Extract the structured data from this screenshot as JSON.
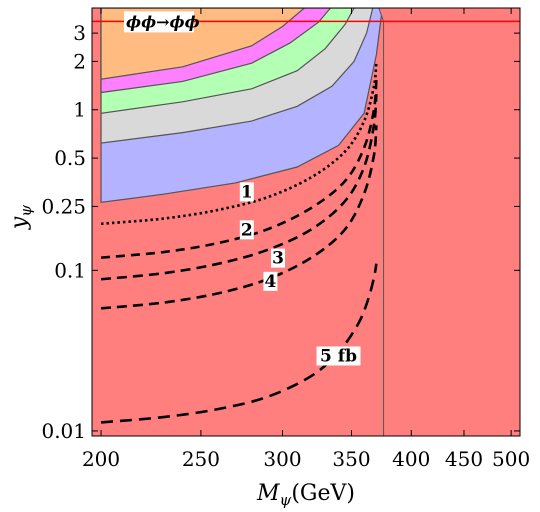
{
  "chart_data": {
    "type": "area",
    "x_axis": {
      "label_main": "M",
      "label_sub": "ψ",
      "label_unit": "(GeV)",
      "scale": "log",
      "range": [
        196,
        510
      ],
      "ticks": [
        {
          "value": 200,
          "label": "200"
        },
        {
          "value": 250,
          "label": "250"
        },
        {
          "value": 300,
          "label": "300"
        },
        {
          "value": 350,
          "label": "350"
        },
        {
          "value": 400,
          "label": "400"
        },
        {
          "value": 450,
          "label": "450"
        },
        {
          "value": 500,
          "label": "500"
        }
      ]
    },
    "y_axis": {
      "label_main": "y",
      "label_sub": "ψ",
      "scale": "log",
      "range": [
        0.0093,
        4.3
      ],
      "ticks": [
        {
          "value": 0.01,
          "label": "0.01"
        },
        {
          "value": 0.1,
          "label": "0.1"
        },
        {
          "value": 0.25,
          "label": "0.25"
        },
        {
          "value": 0.5,
          "label": "0.5"
        },
        {
          "value": 1,
          "label": "1"
        },
        {
          "value": 2,
          "label": "2"
        },
        {
          "value": 3,
          "label": "3"
        }
      ]
    },
    "colors": {
      "excluded": "#ff7f7f",
      "blue": "#b3b3ff",
      "gray": "#d9d9d9",
      "green": "#b3ffb3",
      "magenta": "#ff80ff",
      "orange": "#ffbb80",
      "boundary": "#555555",
      "threshold_line": "#ff0000",
      "contour": "#000000"
    },
    "regions": [
      {
        "color_key": "blue",
        "boundary": [
          [
            200,
            0.265
          ],
          [
            230,
            0.298
          ],
          [
            270,
            0.35
          ],
          [
            310,
            0.44
          ],
          [
            340,
            0.6
          ],
          [
            360,
            0.95
          ],
          [
            370,
            2.2
          ],
          [
            375,
            4.3
          ]
        ]
      },
      {
        "color_key": "gray",
        "boundary": [
          [
            200,
            0.62
          ],
          [
            240,
            0.72
          ],
          [
            280,
            0.85
          ],
          [
            310,
            1.05
          ],
          [
            335,
            1.4
          ],
          [
            352,
            2.0
          ],
          [
            362,
            3.0
          ],
          [
            367,
            4.3
          ]
        ]
      },
      {
        "color_key": "green",
        "boundary": [
          [
            200,
            0.95
          ],
          [
            240,
            1.12
          ],
          [
            280,
            1.35
          ],
          [
            310,
            1.75
          ],
          [
            330,
            2.4
          ],
          [
            345,
            3.4
          ],
          [
            352,
            4.3
          ]
        ]
      },
      {
        "color_key": "magenta",
        "boundary": [
          [
            200,
            1.28
          ],
          [
            240,
            1.5
          ],
          [
            280,
            1.95
          ],
          [
            305,
            2.6
          ],
          [
            325,
            3.5
          ],
          [
            334,
            4.3
          ]
        ]
      },
      {
        "color_key": "orange",
        "boundary": [
          [
            200,
            1.55
          ],
          [
            240,
            1.85
          ],
          [
            280,
            2.5
          ],
          [
            300,
            3.3
          ],
          [
            315,
            4.3
          ]
        ]
      }
    ],
    "excluded_right": {
      "x_boundary": [
        [
          372,
          4.3
        ],
        [
          376,
          3.55
        ],
        [
          510,
          3.55
        ]
      ]
    },
    "horizontal_line": {
      "y": 3.55,
      "label": "ϕϕ→ϕϕ"
    },
    "contours": [
      {
        "label": "1",
        "label_at": [
          277,
          0.31
        ],
        "dash": "2.5 3",
        "points": [
          [
            200,
            0.195
          ],
          [
            230,
            0.21
          ],
          [
            260,
            0.238
          ],
          [
            290,
            0.285
          ],
          [
            320,
            0.38
          ],
          [
            345,
            0.55
          ],
          [
            360,
            0.85
          ],
          [
            368,
            1.4
          ],
          [
            370,
            2.0
          ]
        ]
      },
      {
        "label": "2",
        "label_at": [
          277,
          0.18
        ],
        "dash": "9 6",
        "points": [
          [
            200,
            0.12
          ],
          [
            230,
            0.13
          ],
          [
            260,
            0.148
          ],
          [
            290,
            0.18
          ],
          [
            320,
            0.245
          ],
          [
            345,
            0.36
          ],
          [
            360,
            0.58
          ],
          [
            368,
            1.0
          ],
          [
            370,
            1.55
          ]
        ]
      },
      {
        "label": "3",
        "label_at": [
          297,
          0.12
        ],
        "dash": "10 6",
        "points": [
          [
            200,
            0.088
          ],
          [
            230,
            0.096
          ],
          [
            260,
            0.11
          ],
          [
            290,
            0.134
          ],
          [
            320,
            0.18
          ],
          [
            345,
            0.27
          ],
          [
            360,
            0.44
          ],
          [
            368,
            0.8
          ],
          [
            370,
            1.25
          ]
        ]
      },
      {
        "label": "4",
        "label_at": [
          292,
          0.086
        ],
        "dash": "10 6",
        "points": [
          [
            200,
            0.058
          ],
          [
            230,
            0.063
          ],
          [
            260,
            0.072
          ],
          [
            290,
            0.088
          ],
          [
            320,
            0.12
          ],
          [
            345,
            0.18
          ],
          [
            360,
            0.3
          ],
          [
            368,
            0.52
          ],
          [
            370,
            0.8
          ]
        ]
      },
      {
        "label": "5 fb",
        "label_at": [
          340,
          0.0295
        ],
        "dash": "12 7",
        "points": [
          [
            200,
            0.0113
          ],
          [
            230,
            0.0122
          ],
          [
            260,
            0.0137
          ],
          [
            290,
            0.0163
          ],
          [
            320,
            0.022
          ],
          [
            340,
            0.031
          ],
          [
            355,
            0.046
          ],
          [
            363,
            0.065
          ],
          [
            368,
            0.09
          ],
          [
            370,
            0.11
          ]
        ]
      }
    ]
  }
}
